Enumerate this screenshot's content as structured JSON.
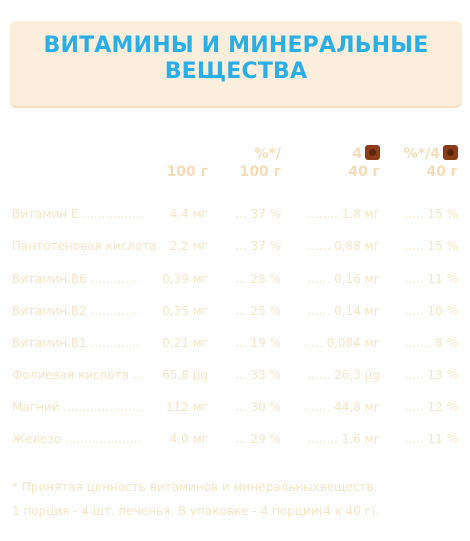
{
  "title": "ВИТАМИНЫ И МИНЕРАЛЬНЫЕ ВЕЩЕСТВА",
  "headers": {
    "per100": "100 г",
    "pct100_top": "%*/",
    "pct100_bottom": "100 г",
    "per40_top": "4",
    "per40_bottom": "40 г",
    "pct40_top": "%*/4",
    "pct40_bottom": "40 г",
    "cookie_icon": "cookie-icon"
  },
  "rows": [
    {
      "name": "Витамин Е ................",
      "per100": "4,4 мг",
      "pct100": "... 37 %",
      "per40": "........ 1,8 мг",
      "pct40": "..... 15 %"
    },
    {
      "name": "Пантотеновая кислота",
      "per100": "2,2 мг",
      "pct100": "... 37 %",
      "per40": "...... 0,88 мг",
      "pct40": "..... 15 %"
    },
    {
      "name": "Витамин В6 ............",
      "per100": "0,39 мг",
      "pct100": "... 28 %",
      "per40": "...... 0,16 мг",
      "pct40": "..... 11 %"
    },
    {
      "name": "Витамин В2 ............",
      "per100": "0,35 мг",
      "pct100": "... 25 %",
      "per40": "...... 0,14 мг",
      "pct40": "..... 10 %"
    },
    {
      "name": "Витамин В1 .............",
      "per100": "0,21 мг",
      "pct100": "... 19 %",
      "per40": "..... 0,084 мг",
      "pct40": "....... 8 %"
    },
    {
      "name": "Фолиевая кислота ...",
      "per100": "65,8 μg",
      "pct100": "... 33 %",
      "per40": "...... 26,3 μg",
      "pct40": "..... 13 %"
    },
    {
      "name": "Магний .....................",
      "per100": "112 мг",
      "pct100": "... 30 %",
      "per40": "....... 44,8 мг",
      "pct40": "..... 12 %"
    },
    {
      "name": "Железо ....................",
      "per100": "4,0 мг",
      "pct100": "... 29 %",
      "per40": "........ 1,6 мг",
      "pct40": "..... 11 %"
    }
  ],
  "footnote1": "* Принятая ценность витаминов и минеральныхвеществ.",
  "footnote2": "1 порция - 4   шт. печенья. В упаковке - 4   порции(4 x 40  г).",
  "colors": {
    "title": "#29aee6",
    "banner": "#fbeedd",
    "text": "#f7e4c6",
    "cookie": "#8a3d17"
  }
}
